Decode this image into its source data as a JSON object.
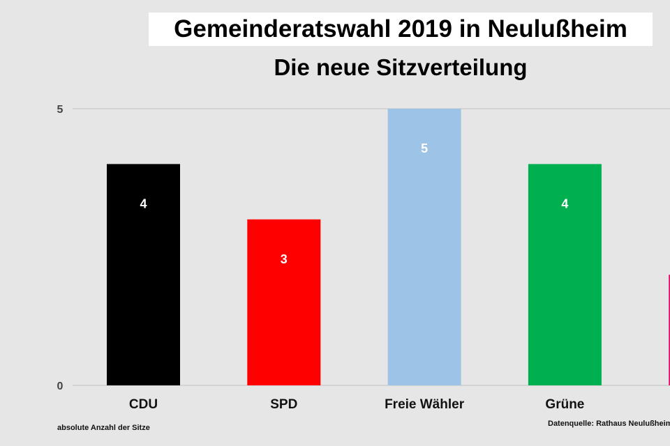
{
  "chart_data": {
    "type": "bar",
    "title": "Gemeinderatswahl 2019 in Neulußheim",
    "subtitle": "Die neue Sitzverteilung",
    "categories": [
      "CDU",
      "SPD",
      "Freie Wähler",
      "Grüne",
      ""
    ],
    "values": [
      4,
      3,
      5,
      4,
      2
    ],
    "colors": [
      "#000000",
      "#ff0000",
      "#9dc3e6",
      "#00b050",
      "#e0106a"
    ],
    "ylim": [
      0,
      5
    ],
    "yticks": [
      0,
      5
    ],
    "xlabel": "",
    "ylabel": "absolute Anzahl der Sitze",
    "source": "Datenquelle: Rathaus Neulußheim",
    "grid": true
  }
}
